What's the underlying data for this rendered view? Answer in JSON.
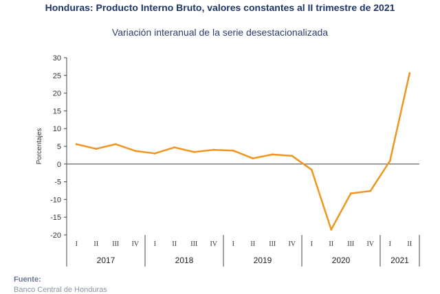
{
  "header": {
    "title": "Honduras: Producto Interno Bruto, valores constantes al II trimestre de 2021",
    "subtitle": "Variación interanual de la serie desestacionalizada"
  },
  "footer": {
    "source_label": "Fuente:",
    "source_text": "Banco Central de Honduras"
  },
  "chart_data": {
    "type": "line",
    "title": "Honduras: Producto Interno Bruto, valores constantes al II trimestre de 2021",
    "subtitle": "Variación interanual de la serie desestacionalizada",
    "xlabel": "",
    "ylabel": "Porcentajes",
    "ylim": [
      -20,
      30
    ],
    "yticks": [
      30,
      25,
      20,
      15,
      10,
      5,
      0,
      -5,
      -10,
      -15,
      -20
    ],
    "grid": false,
    "legend": "none",
    "line_color": "#f0961e",
    "zero_line_color": "#7f7f7f",
    "years": [
      {
        "label": "2017",
        "quarters": [
          "I",
          "II",
          "III",
          "IV"
        ]
      },
      {
        "label": "2018",
        "quarters": [
          "I",
          "II",
          "III",
          "IV"
        ]
      },
      {
        "label": "2019",
        "quarters": [
          "I",
          "II",
          "III",
          "IV"
        ]
      },
      {
        "label": "2020",
        "quarters": [
          "I",
          "II",
          "III",
          "IV"
        ]
      },
      {
        "label": "2021",
        "quarters": [
          "I",
          "II"
        ]
      }
    ],
    "series": [
      {
        "values": [
          5.6,
          4.3,
          5.6,
          3.7,
          3.0,
          4.7,
          3.4,
          4.0,
          3.8,
          1.6,
          2.7,
          2.3,
          -1.6,
          -18.5,
          -8.3,
          -7.6,
          0.9,
          25.6
        ]
      }
    ]
  }
}
